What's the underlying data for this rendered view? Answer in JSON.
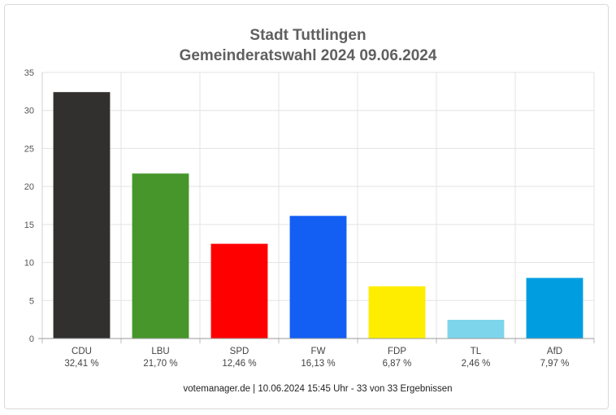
{
  "chart_data": {
    "type": "bar",
    "title": "Stadt Tuttlingen",
    "subtitle": "Gemeinderatswahl 2024 09.06.2024",
    "categories": [
      "CDU",
      "LBU",
      "SPD",
      "FW",
      "FDP",
      "TL",
      "AfD"
    ],
    "value_labels": [
      "32,41 %",
      "21,70 %",
      "12,46 %",
      "16,13 %",
      "6,87 %",
      "2,46 %",
      "7,97 %"
    ],
    "values": [
      32.41,
      21.7,
      12.46,
      16.13,
      6.87,
      2.46,
      7.97
    ],
    "colors": [
      "#32302e",
      "#46962b",
      "#ff0000",
      "#135ef3",
      "#ffed00",
      "#7dd5eb",
      "#009ee0"
    ],
    "ylim": [
      0,
      35
    ],
    "yticks": [
      "0",
      "5",
      "10",
      "15",
      "20",
      "25",
      "30",
      "35"
    ],
    "ytick_values": [
      0,
      5,
      10,
      15,
      20,
      25,
      30,
      35
    ],
    "grid": true,
    "legend": "none",
    "xlabel": "",
    "ylabel": ""
  },
  "footer": "votemanager.de | 10.06.2024 15:45 Uhr - 33 von 33 Ergebnissen"
}
